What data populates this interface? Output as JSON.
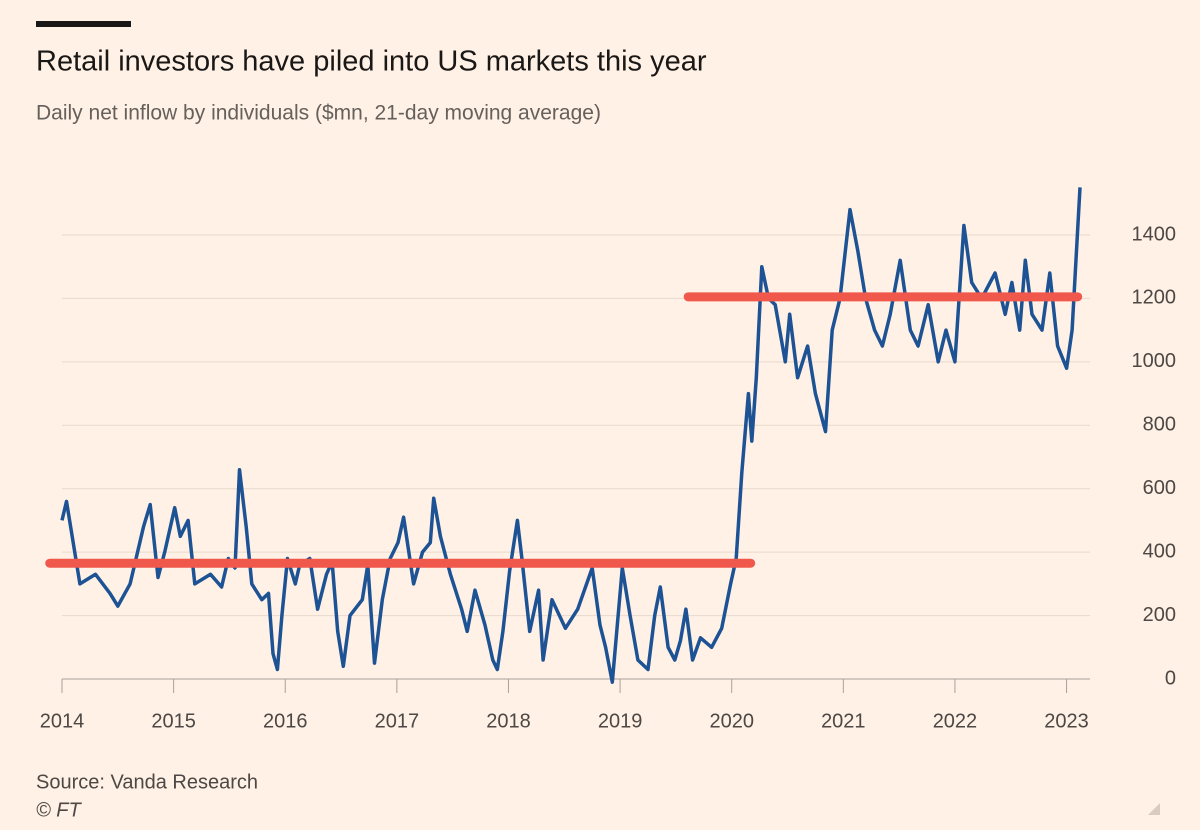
{
  "chart_data": {
    "type": "line",
    "title": "Retail investors have piled into US markets this year",
    "subtitle": "Daily net inflow by individuals ($mn, 21-day moving average)",
    "source": "Source: Vanda Research",
    "credit": "© FT",
    "x": [
      2014.0,
      2014.04,
      2014.16,
      2014.3,
      2014.43,
      2014.5,
      2014.61,
      2014.73,
      2014.79,
      2014.86,
      2014.92,
      2015.01,
      2015.06,
      2015.13,
      2015.19,
      2015.33,
      2015.43,
      2015.49,
      2015.55,
      2015.59,
      2015.65,
      2015.7,
      2015.79,
      2015.85,
      2015.89,
      2015.93,
      2015.97,
      2016.02,
      2016.09,
      2016.13,
      2016.22,
      2016.29,
      2016.37,
      2016.42,
      2016.47,
      2016.52,
      2016.58,
      2016.69,
      2016.74,
      2016.8,
      2016.87,
      2016.94,
      2017.01,
      2017.06,
      2017.15,
      2017.23,
      2017.3,
      2017.33,
      2017.39,
      2017.48,
      2017.58,
      2017.63,
      2017.7,
      2017.79,
      2017.86,
      2017.9,
      2017.95,
      2018.01,
      2018.08,
      2018.12,
      2018.19,
      2018.27,
      2018.31,
      2018.39,
      2018.51,
      2018.62,
      2018.75,
      2018.82,
      2018.87,
      2018.93,
      2019.02,
      2019.09,
      2019.16,
      2019.25,
      2019.31,
      2019.36,
      2019.43,
      2019.49,
      2019.54,
      2019.59,
      2019.65,
      2019.72,
      2019.82,
      2019.91,
      2019.99,
      2020.04,
      2020.09,
      2020.15,
      2020.18,
      2020.22,
      2020.27,
      2020.33,
      2020.39,
      2020.48,
      2020.52,
      2020.59,
      2020.68,
      2020.75,
      2020.84,
      2020.9,
      2020.97,
      2021.06,
      2021.13,
      2021.2,
      2021.28,
      2021.35,
      2021.42,
      2021.51,
      2021.6,
      2021.67,
      2021.76,
      2021.85,
      2021.92,
      2022.0,
      2022.08,
      2022.15,
      2022.24,
      2022.36,
      2022.45,
      2022.51,
      2022.58,
      2022.63,
      2022.69,
      2022.78,
      2022.85,
      2022.92,
      2023.0,
      2023.05,
      2023.12
    ],
    "values": [
      500,
      560,
      300,
      330,
      270,
      230,
      300,
      480,
      550,
      320,
      400,
      540,
      450,
      500,
      300,
      330,
      290,
      380,
      350,
      660,
      480,
      300,
      250,
      270,
      80,
      30,
      200,
      380,
      300,
      360,
      380,
      220,
      330,
      370,
      150,
      40,
      200,
      250,
      360,
      50,
      250,
      380,
      430,
      510,
      300,
      400,
      430,
      570,
      450,
      330,
      220,
      150,
      280,
      170,
      60,
      30,
      150,
      340,
      500,
      380,
      150,
      280,
      60,
      250,
      160,
      220,
      350,
      170,
      100,
      -10,
      350,
      200,
      60,
      30,
      200,
      290,
      100,
      60,
      120,
      220,
      60,
      130,
      100,
      160,
      300,
      380,
      650,
      900,
      750,
      950,
      1300,
      1200,
      1180,
      1000,
      1150,
      950,
      1050,
      900,
      780,
      1100,
      1200,
      1480,
      1350,
      1200,
      1100,
      1050,
      1150,
      1320,
      1100,
      1050,
      1180,
      1000,
      1100,
      1000,
      1430,
      1250,
      1200,
      1280,
      1150,
      1250,
      1100,
      1320,
      1150,
      1100,
      1280,
      1050,
      980,
      1100,
      1550
    ],
    "color": "#1d5394",
    "reference_lines": [
      {
        "y": 365,
        "x_start": 2013.89,
        "x_end": 2020.17
      },
      {
        "y": 1205,
        "x_start": 2019.61,
        "x_end": 2023.1
      }
    ],
    "reference_color": "#f0584c",
    "xlim": [
      2014,
      2023.21
    ],
    "xticks": [
      2014,
      2015,
      2016,
      2017,
      2018,
      2019,
      2020,
      2021,
      2022,
      2023
    ],
    "ylim": [
      0,
      1550
    ],
    "yticks": [
      0,
      200,
      400,
      600,
      800,
      1000,
      1200,
      1400
    ],
    "grid": true
  }
}
